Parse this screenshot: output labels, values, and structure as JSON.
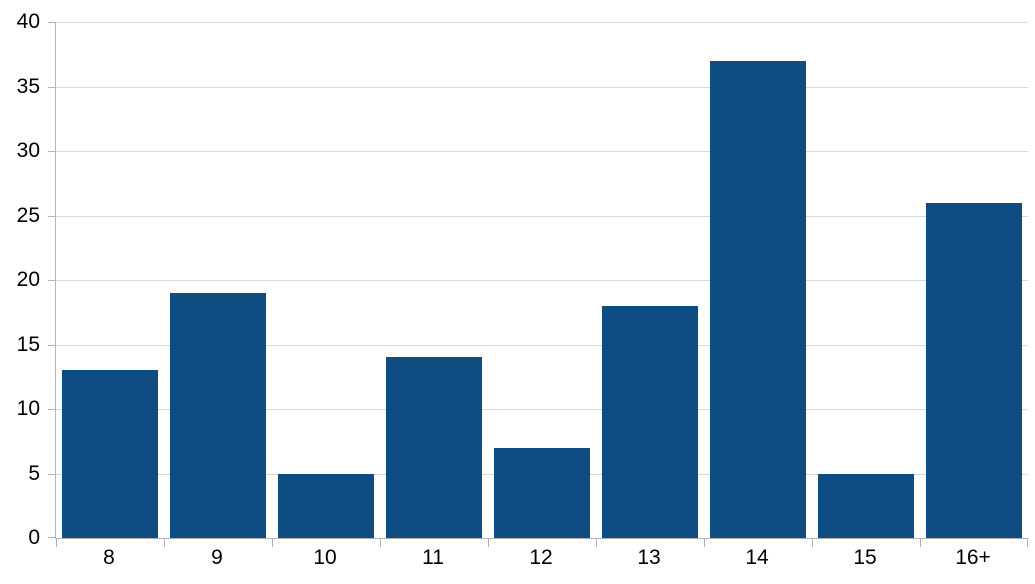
{
  "chart_data": {
    "type": "bar",
    "title": "",
    "xlabel": "",
    "ylabel": "",
    "categories": [
      "8",
      "9",
      "10",
      "11",
      "12",
      "13",
      "14",
      "15",
      "16+"
    ],
    "values": [
      13,
      19,
      5,
      14,
      7,
      18,
      37,
      5,
      26
    ],
    "ylim": [
      0,
      40
    ],
    "yticks": [
      0,
      5,
      10,
      15,
      20,
      25,
      30,
      35,
      40
    ],
    "grid": "horizontal",
    "legend": "none",
    "bar_color": "#0F4C81",
    "gridline_color": "#d9d9d9",
    "axis_color": "#b3b3b3",
    "label_color": "#000000",
    "background_color": "#ffffff"
  }
}
